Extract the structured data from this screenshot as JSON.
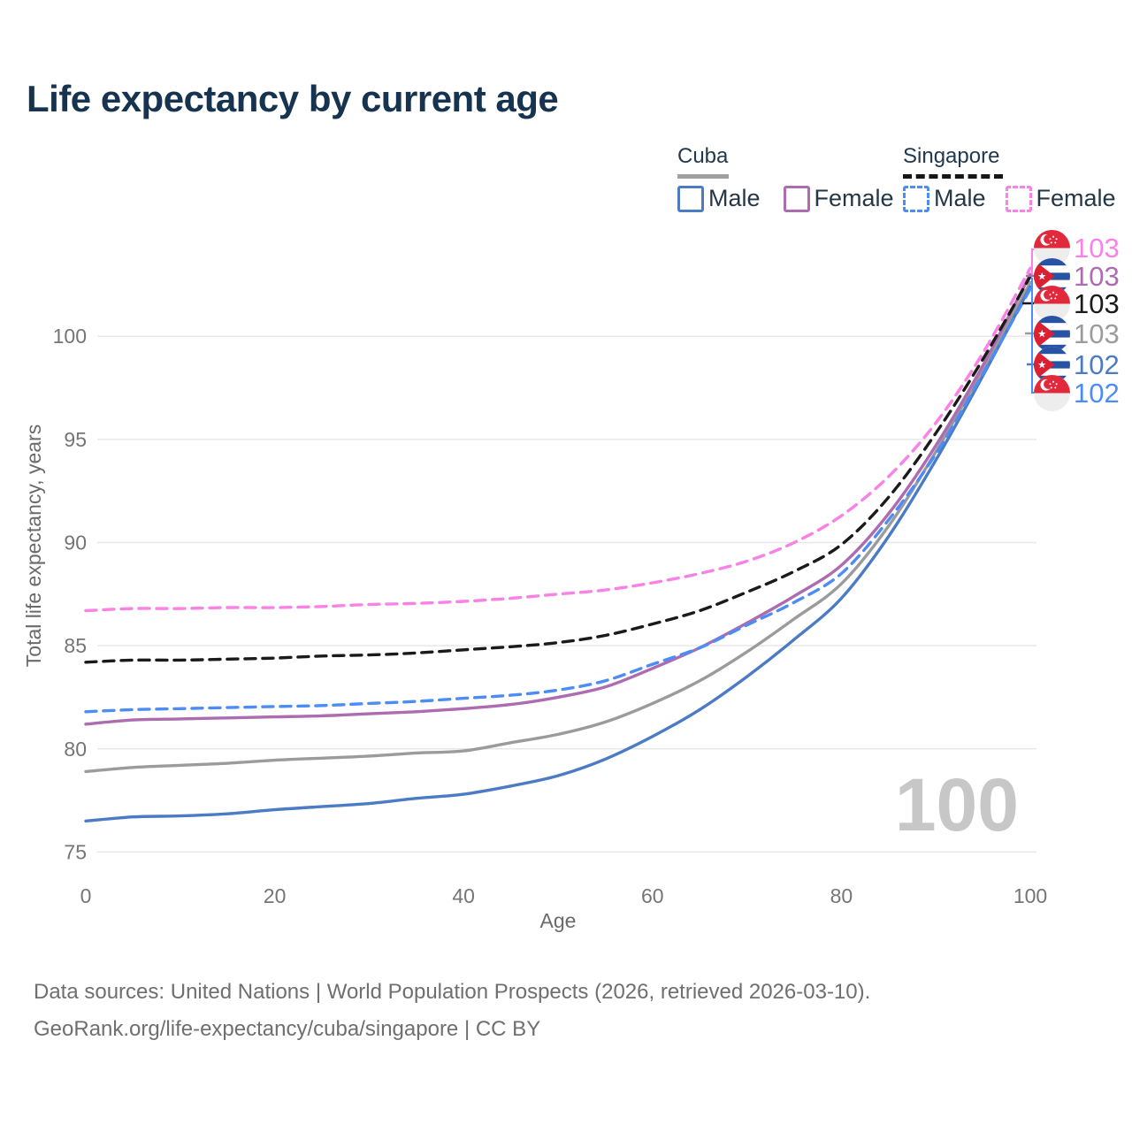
{
  "title": "Life expectancy by current age",
  "legend": {
    "cuba": {
      "name": "Cuba",
      "male": "Male",
      "female": "Female",
      "line_style": "solid"
    },
    "singapore": {
      "name": "Singapore",
      "male": "Male",
      "female": "Female",
      "line_style": "dashed"
    }
  },
  "colors": {
    "cuba_male": "#4C7BC6",
    "cuba_female": "#AE6CB0",
    "cuba_all": "#9B9B9B",
    "singapore_male": "#4C8CF5",
    "singapore_female": "#FA82E6",
    "singapore_all": "#1A1A1A",
    "title": "#16334F",
    "grid": "#E8E8E8",
    "axis_text": "#757575"
  },
  "chart_data": {
    "type": "line",
    "xlabel": "Age",
    "ylabel": "Total life expectancy, years",
    "x_ticks": [
      0,
      20,
      40,
      60,
      80,
      100
    ],
    "y_ticks": [
      75,
      80,
      85,
      90,
      95,
      100
    ],
    "xlim": [
      0,
      100
    ],
    "ylim": [
      74.5,
      104.5
    ],
    "grid": true,
    "legend_position": "top-right",
    "watermark": "100",
    "x": [
      0,
      5,
      10,
      15,
      20,
      25,
      30,
      35,
      40,
      45,
      50,
      55,
      60,
      65,
      70,
      75,
      80,
      85,
      90,
      95,
      100
    ],
    "series": [
      {
        "name": "Singapore Female",
        "color": "#FA82E6",
        "dash": true,
        "values": [
          86.7,
          86.8,
          86.8,
          86.85,
          86.85,
          86.9,
          87.0,
          87.05,
          87.15,
          87.3,
          87.5,
          87.7,
          88.05,
          88.5,
          89.1,
          90.0,
          91.3,
          93.2,
          95.8,
          99.2,
          103.3
        ]
      },
      {
        "name": "Singapore (both sexes)",
        "color": "#1A1A1A",
        "dash": true,
        "values": [
          84.2,
          84.3,
          84.3,
          84.35,
          84.4,
          84.5,
          84.55,
          84.65,
          84.8,
          84.95,
          85.15,
          85.5,
          86.05,
          86.7,
          87.6,
          88.6,
          89.9,
          92.2,
          95.3,
          98.9,
          102.9
        ]
      },
      {
        "name": "Singapore Male",
        "color": "#4C8CF5",
        "dash": true,
        "values": [
          81.8,
          81.9,
          81.95,
          82.0,
          82.05,
          82.1,
          82.2,
          82.3,
          82.45,
          82.6,
          82.85,
          83.3,
          84.1,
          84.9,
          86.0,
          87.1,
          88.5,
          91.1,
          94.3,
          98.2,
          102.3
        ]
      },
      {
        "name": "Cuba Female",
        "color": "#AE6CB0",
        "dash": false,
        "values": [
          81.2,
          81.4,
          81.45,
          81.5,
          81.55,
          81.6,
          81.7,
          81.8,
          81.95,
          82.15,
          82.5,
          83.0,
          83.9,
          84.9,
          86.1,
          87.4,
          88.9,
          91.4,
          94.7,
          98.6,
          103.0
        ]
      },
      {
        "name": "Cuba (both sexes)",
        "color": "#9B9B9B",
        "dash": false,
        "values": [
          78.9,
          79.1,
          79.2,
          79.3,
          79.45,
          79.55,
          79.65,
          79.8,
          79.9,
          80.3,
          80.7,
          81.3,
          82.2,
          83.3,
          84.7,
          86.3,
          88.0,
          90.8,
          94.4,
          98.4,
          102.6
        ]
      },
      {
        "name": "Cuba Male",
        "color": "#4C7BC6",
        "dash": false,
        "values": [
          76.5,
          76.7,
          76.75,
          76.85,
          77.05,
          77.2,
          77.35,
          77.6,
          77.8,
          78.2,
          78.7,
          79.5,
          80.6,
          81.9,
          83.5,
          85.3,
          87.3,
          90.3,
          94.0,
          98.1,
          102.4
        ]
      }
    ]
  },
  "end_labels": [
    {
      "flag": "singapore",
      "series": "Singapore Female",
      "value": "103",
      "color": "#FA82E6"
    },
    {
      "flag": "cuba",
      "series": "Cuba Female",
      "value": "103",
      "color": "#AE6CB0"
    },
    {
      "flag": "singapore",
      "series": "Singapore (both sexes)",
      "value": "103",
      "color": "#1A1A1A"
    },
    {
      "flag": "cuba",
      "series": "Cuba (both sexes)",
      "value": "103",
      "color": "#9B9B9B"
    },
    {
      "flag": "cuba",
      "series": "Cuba Male",
      "value": "102",
      "color": "#4C7BC6"
    },
    {
      "flag": "singapore",
      "series": "Singapore Male",
      "value": "102",
      "color": "#4C8CF5"
    }
  ],
  "footer": {
    "line1": "Data sources: United Nations | World Population Prospects (2026, retrieved 2026-03-10).",
    "line2": "GeoRank.org/life-expectancy/cuba/singapore | CC BY"
  }
}
